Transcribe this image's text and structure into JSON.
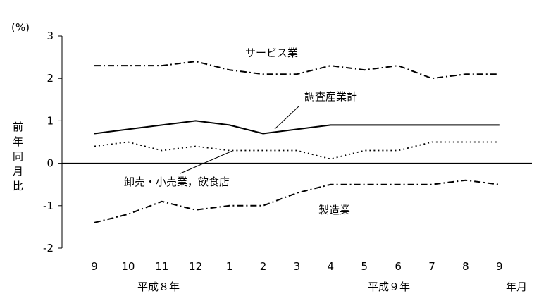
{
  "chart_data": {
    "type": "line",
    "unit": "(%)",
    "ylabel": [
      "前",
      "年",
      "同",
      "月",
      "比"
    ],
    "x_month_labels": [
      "9",
      "10",
      "11",
      "12",
      "1",
      "2",
      "3",
      "4",
      "5",
      "6",
      "7",
      "8",
      "9"
    ],
    "year_labels": [
      "平成８年",
      "平成９年"
    ],
    "x_axis_unit": "年月",
    "ylim": [
      -2,
      3
    ],
    "y_ticks": [
      "3",
      "2",
      "1",
      "0",
      "-1",
      "-2"
    ],
    "grid": false,
    "series": [
      {
        "name": "サービス業",
        "style": "dash-dot",
        "values": [
          2.3,
          2.3,
          2.3,
          2.4,
          2.2,
          2.1,
          2.1,
          2.3,
          2.2,
          2.3,
          2.0,
          2.1,
          2.1
        ]
      },
      {
        "name": "調査産業計",
        "style": "solid",
        "values": [
          0.7,
          0.8,
          0.9,
          1.0,
          0.9,
          0.7,
          0.8,
          0.9,
          0.9,
          0.9,
          0.9,
          0.9,
          0.9
        ]
      },
      {
        "name": "卸売・小売業，飲食店",
        "style": "dotted",
        "values": [
          0.4,
          0.5,
          0.3,
          0.4,
          0.3,
          0.3,
          0.3,
          0.1,
          0.3,
          0.3,
          0.5,
          0.5,
          0.5
        ]
      },
      {
        "name": "製造業",
        "style": "dash-dot",
        "values": [
          -1.4,
          -1.2,
          -0.9,
          -1.1,
          -1.0,
          -1.0,
          -0.7,
          -0.5,
          -0.5,
          -0.5,
          -0.5,
          -0.4,
          -0.5
        ]
      }
    ]
  }
}
